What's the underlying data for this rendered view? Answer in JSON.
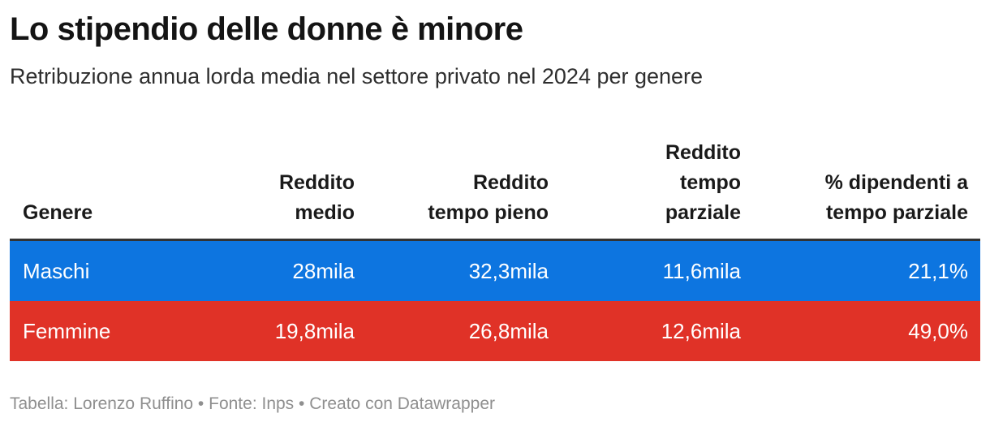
{
  "title": "Lo stipendio delle donne è minore",
  "subtitle": "Retribuzione annua lorda media nel settore privato nel 2024 per genere",
  "table": {
    "header_divider_color": "#333333",
    "columns": [
      "Genere",
      "Reddito\nmedio",
      "Reddito\ntempo pieno",
      "Reddito\ntempo\nparziale",
      "% dipendenti a\ntempo parziale"
    ],
    "rows": [
      {
        "color": "#0d75e0",
        "cells": [
          "Maschi",
          "28mila",
          "32,3mila",
          "11,6mila",
          "21,1%"
        ]
      },
      {
        "color": "#e03227",
        "cells": [
          "Femmine",
          "19,8mila",
          "26,8mila",
          "12,6mila",
          "49,0%"
        ]
      }
    ]
  },
  "footer": "Tabella: Lorenzo Ruffino • Fonte: Inps • Creato con Datawrapper",
  "chart_data": {
    "type": "table",
    "title": "Lo stipendio delle donne è minore",
    "subtitle": "Retribuzione annua lorda media nel settore privato nel 2024 per genere",
    "columns": [
      "Genere",
      "Reddito medio",
      "Reddito tempo pieno",
      "Reddito tempo parziale",
      "% dipendenti a tempo parziale"
    ],
    "rows": [
      {
        "genere": "Maschi",
        "reddito_medio_mila": 28,
        "reddito_tempo_pieno_mila": 32.3,
        "reddito_tempo_parziale_mila": 11.6,
        "pct_dipendenti_tempo_parziale": 21.1,
        "row_color": "#0d75e0"
      },
      {
        "genere": "Femmine",
        "reddito_medio_mila": 19.8,
        "reddito_tempo_pieno_mila": 26.8,
        "reddito_tempo_parziale_mila": 12.6,
        "pct_dipendenti_tempo_parziale": 49.0,
        "row_color": "#e03227"
      }
    ],
    "footer": "Tabella: Lorenzo Ruffino • Fonte: Inps • Creato con Datawrapper"
  }
}
